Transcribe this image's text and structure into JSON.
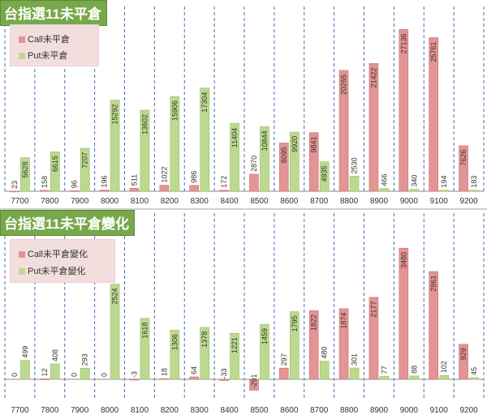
{
  "colors": {
    "call": "#e39494",
    "call_edge": "#c87171",
    "put": "#bcd98f",
    "put_edge": "#98bd68",
    "title_bg": "#77a84a",
    "gridline": "#4a6fb5"
  },
  "chart_data": [
    {
      "type": "bar",
      "title": "台指選11未平倉",
      "xlabel": "",
      "ylabel": "",
      "ylim": [
        0,
        28000
      ],
      "grid": true,
      "legend_position": "top-left",
      "categories": [
        "7700",
        "7800",
        "7900",
        "8000",
        "8100",
        "8200",
        "8300",
        "8400",
        "8500",
        "8600",
        "8700",
        "8800",
        "8900",
        "9000",
        "9100",
        "9200"
      ],
      "series": [
        {
          "name": "Call未平倉",
          "values": [
            23,
            158,
            96,
            196,
            511,
            1022,
            986,
            172,
            2870,
            8095,
            9841,
            20265,
            21422,
            27136,
            25761,
            7626
          ]
        },
        {
          "name": "Put未平倉",
          "values": [
            5628,
            6615,
            7207,
            15292,
            13602,
            15906,
            17304,
            11404,
            10844,
            9920,
            4935,
            2530,
            466,
            340,
            194,
            183
          ]
        }
      ],
      "value_labels": {
        "call": [
          "23",
          "158",
          "96",
          "196",
          "511",
          "1022",
          "986",
          "172",
          "2870",
          "8095",
          "9841",
          "20265",
          "21422",
          "27136",
          "25761",
          "7626"
        ],
        "put": [
          "5628",
          "6615",
          "7207",
          "15292",
          "13602",
          "15906",
          "17304",
          "11404",
          "10844",
          "9920",
          "4935",
          "2530",
          "466",
          "340",
          "194",
          "183"
        ]
      }
    },
    {
      "type": "bar",
      "title": "台指選11未平倉變化",
      "xlabel": "",
      "ylabel": "",
      "ylim": [
        -600,
        3700
      ],
      "grid": true,
      "legend_position": "top-left",
      "categories": [
        "7700",
        "7800",
        "7900",
        "8000",
        "8100",
        "8200",
        "8300",
        "8400",
        "8500",
        "8600",
        "8700",
        "8800",
        "8900",
        "9000",
        "9100",
        "9200"
      ],
      "series": [
        {
          "name": "Call未平倉變化",
          "values": [
            0,
            12,
            0,
            0,
            -3,
            18,
            64,
            -33,
            -291,
            297,
            1822,
            1874,
            2177,
            3480,
            2861,
            929
          ]
        },
        {
          "name": "Put未平倉變化",
          "values": [
            499,
            408,
            293,
            2524,
            1618,
            1306,
            1378,
            1221,
            1459,
            1795,
            480,
            301,
            77,
            88,
            102,
            45
          ]
        }
      ],
      "value_labels": {
        "call": [
          "0",
          "12",
          "0",
          "0",
          "-3",
          "18",
          "64",
          "-33",
          "-291",
          "297",
          "1822",
          "1874",
          "2177",
          "3480",
          "2861",
          "929"
        ],
        "put": [
          "499",
          "408",
          "293",
          "2524",
          "1618",
          "1306",
          "1378",
          "1221",
          "1459",
          "1795",
          "480",
          "301",
          "77",
          "88",
          "102",
          "45"
        ]
      }
    }
  ]
}
